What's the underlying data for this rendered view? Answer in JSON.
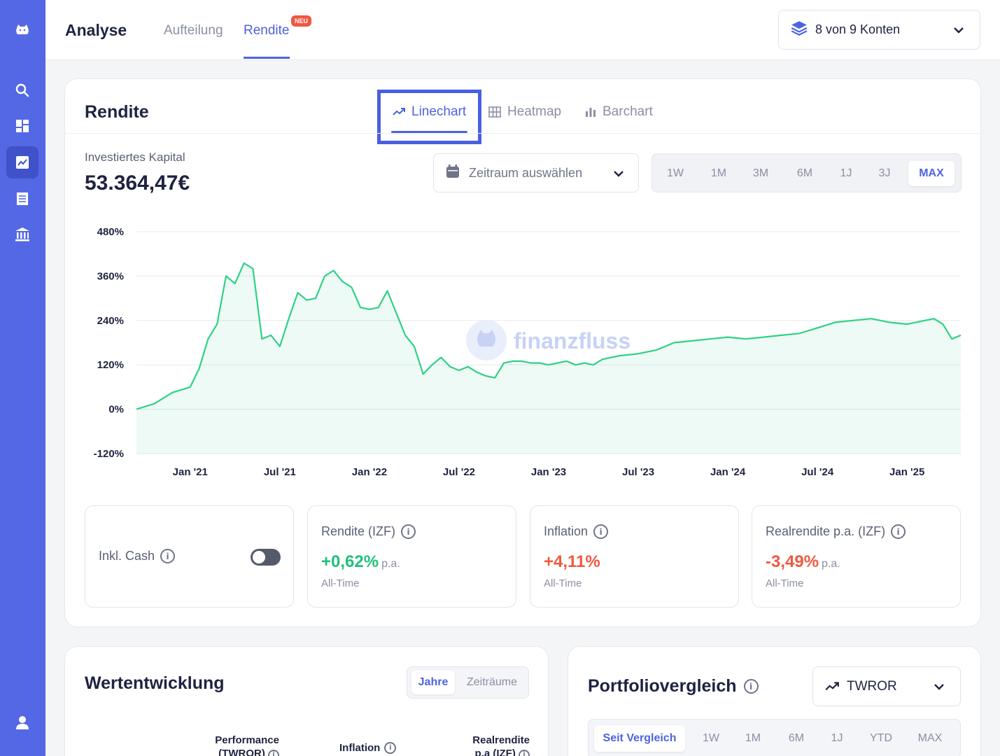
{
  "header": {
    "title": "Analyse",
    "tabs": [
      "Aufteilung",
      "Rendite"
    ],
    "active_tab": "Rendite",
    "badge": "NEU",
    "accounts_label": "8 von 9 Konten"
  },
  "sidebar": {
    "items": [
      "logo-icon",
      "search-icon",
      "dashboard-icon",
      "chart-icon",
      "list-icon",
      "bank-icon",
      "user-icon"
    ],
    "active": "chart-icon"
  },
  "main": {
    "title": "Rendite",
    "view_tabs": [
      "Linechart",
      "Heatmap",
      "Barchart"
    ],
    "active_view": "Linechart",
    "capital_label": "Investiertes Kapital",
    "capital_value": "53.364,47€",
    "range_placeholder": "Zeitraum auswählen",
    "periods": [
      "1W",
      "1M",
      "3M",
      "6M",
      "1J",
      "3J",
      "MAX"
    ],
    "active_period": "MAX",
    "watermark": "finanzfluss"
  },
  "stats": {
    "cash": {
      "label": "Inkl. Cash",
      "toggle": false
    },
    "rendite": {
      "label": "Rendite (IZF)",
      "value": "+0,62%",
      "suffix": "p.a.",
      "sub": "All-Time"
    },
    "inflation": {
      "label": "Inflation",
      "value": "+4,11%",
      "sub": "All-Time"
    },
    "realrendite": {
      "label": "Realrendite p.a. (IZF)",
      "value": "-3,49%",
      "suffix": "p.a.",
      "sub": "All-Time"
    }
  },
  "wertentwicklung": {
    "title": "Wertentwicklung",
    "segments": [
      "Jahre",
      "Zeiträume"
    ],
    "active_segment": "Jahre",
    "columns": {
      "performance_1": "Performance",
      "performance_2": "(TWROR)",
      "inflation": "Inflation",
      "real_1": "Realrendite",
      "real_2": "p.a (IZF)"
    }
  },
  "portfoliovergleich": {
    "title": "Portfoliovergleich",
    "metric": "TWROR",
    "periods": [
      "Seit Vergleich",
      "1W",
      "1M",
      "6M",
      "1J",
      "YTD",
      "MAX"
    ],
    "active_period": "Seit Vergleich"
  },
  "colors": {
    "accent": "#4e63e0",
    "sidebar": "#5468e6",
    "positive": "#22c07a",
    "negative": "#ee5a40"
  },
  "chart_data": {
    "type": "area",
    "yticks": [
      "480%",
      "360%",
      "240%",
      "120%",
      "0%",
      "-120%"
    ],
    "ylim": [
      -120,
      480
    ],
    "xticks": [
      "Jan '21",
      "Jul '21",
      "Jan '22",
      "Jul '22",
      "Jan '23",
      "Jul '23",
      "Jan '24",
      "Jul '24",
      "Jan '25"
    ],
    "x": [
      2020.7,
      2020.8,
      2020.9,
      2021.0,
      2021.05,
      2021.1,
      2021.15,
      2021.2,
      2021.25,
      2021.3,
      2021.35,
      2021.4,
      2021.45,
      2021.5,
      2021.55,
      2021.6,
      2021.65,
      2021.7,
      2021.75,
      2021.8,
      2021.85,
      2021.9,
      2021.95,
      2022.0,
      2022.05,
      2022.1,
      2022.15,
      2022.2,
      2022.25,
      2022.3,
      2022.35,
      2022.4,
      2022.45,
      2022.5,
      2022.55,
      2022.6,
      2022.65,
      2022.7,
      2022.75,
      2022.8,
      2022.85,
      2022.9,
      2022.95,
      2023.0,
      2023.05,
      2023.1,
      2023.15,
      2023.2,
      2023.25,
      2023.3,
      2023.4,
      2023.5,
      2023.6,
      2023.7,
      2023.8,
      2023.9,
      2024.0,
      2024.1,
      2024.2,
      2024.3,
      2024.4,
      2024.5,
      2024.6,
      2024.7,
      2024.8,
      2024.9,
      2025.0,
      2025.1,
      2025.15,
      2025.2,
      2025.25,
      2025.3
    ],
    "values": [
      0,
      15,
      45,
      60,
      110,
      190,
      230,
      360,
      340,
      395,
      380,
      190,
      200,
      170,
      245,
      315,
      295,
      300,
      360,
      375,
      345,
      330,
      275,
      270,
      275,
      320,
      260,
      200,
      170,
      95,
      120,
      140,
      115,
      105,
      115,
      100,
      90,
      85,
      125,
      130,
      130,
      125,
      125,
      120,
      125,
      130,
      120,
      125,
      120,
      135,
      145,
      150,
      160,
      180,
      185,
      190,
      195,
      190,
      195,
      200,
      205,
      220,
      235,
      240,
      245,
      235,
      230,
      240,
      245,
      230,
      190,
      200
    ],
    "series": [
      {
        "values_ref": "values"
      }
    ],
    "grid": true,
    "legend": "none"
  }
}
